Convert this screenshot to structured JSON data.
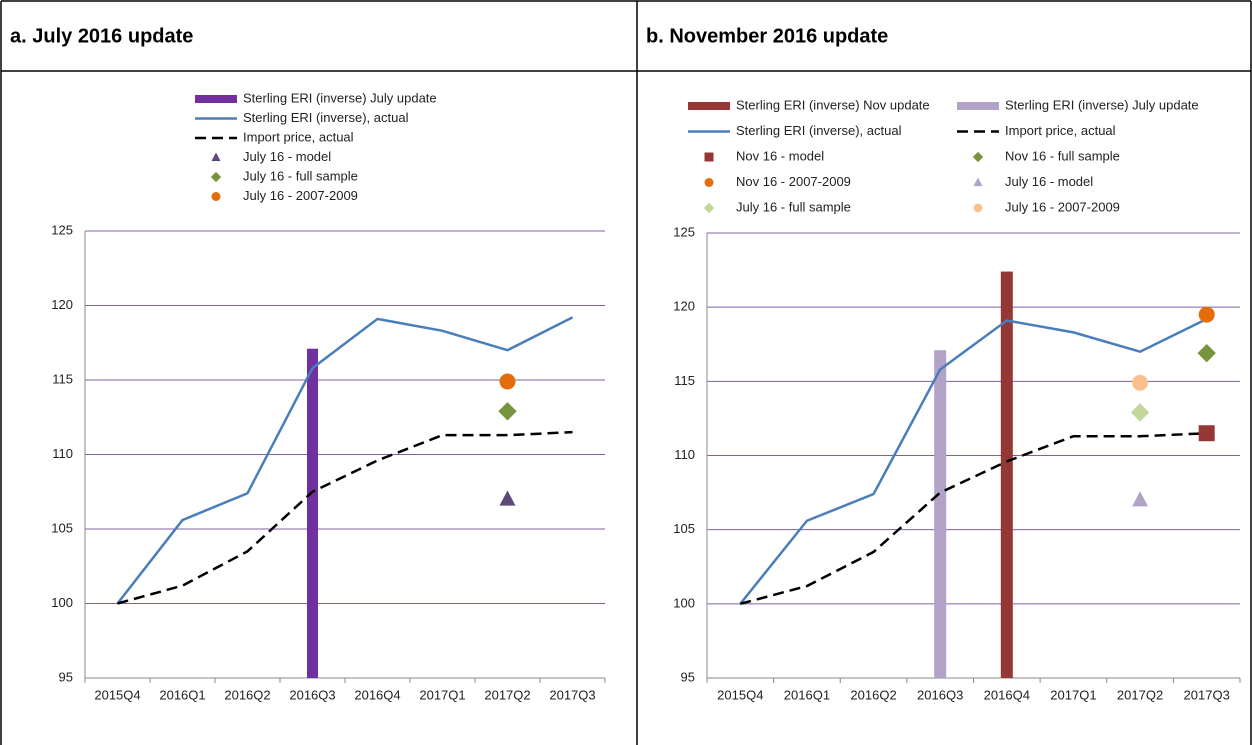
{
  "chart_data": [
    {
      "type": "combo",
      "title": "a. July 2016 update",
      "legend_columns": 1,
      "categories": [
        "2015Q4",
        "2016Q1",
        "2016Q2",
        "2016Q3",
        "2016Q4",
        "2017Q1",
        "2017Q2",
        "2017Q3"
      ],
      "ylim": [
        95,
        125
      ],
      "yticks": [
        95,
        100,
        105,
        110,
        115,
        120,
        125
      ],
      "grid": true,
      "series": [
        {
          "name": "Sterling ERI (inverse) July update",
          "kind": "bar",
          "color": "#7030a0",
          "values": [
            null,
            null,
            null,
            117.1,
            null,
            null,
            null,
            null
          ]
        },
        {
          "name": "Sterling ERI (inverse), actual",
          "kind": "line",
          "color": "#4a7ebb",
          "values": [
            100,
            105.6,
            107.4,
            115.8,
            119.1,
            118.3,
            117.0,
            119.2
          ]
        },
        {
          "name": "Import price, actual",
          "kind": "line",
          "dash": true,
          "color": "#000000",
          "values": [
            100,
            101.2,
            103.5,
            107.5,
            109.6,
            111.3,
            111.3,
            111.5
          ]
        },
        {
          "name": "July 16 - model",
          "kind": "scatter",
          "marker": "triangle",
          "color": "#5f497a",
          "values": [
            null,
            null,
            null,
            null,
            null,
            null,
            107.0,
            null
          ]
        },
        {
          "name": "July 16 - full sample",
          "kind": "scatter",
          "marker": "diamond",
          "color": "#77933c",
          "values": [
            null,
            null,
            null,
            null,
            null,
            null,
            112.9,
            null
          ]
        },
        {
          "name": "July 16 - 2007-2009",
          "kind": "scatter",
          "marker": "circle",
          "color": "#e46c0a",
          "values": [
            null,
            null,
            null,
            null,
            null,
            null,
            114.9,
            null
          ]
        }
      ]
    },
    {
      "type": "combo",
      "title": "b. November 2016 update",
      "legend_columns": 2,
      "categories": [
        "2015Q4",
        "2016Q1",
        "2016Q2",
        "2016Q3",
        "2016Q4",
        "2017Q1",
        "2017Q2",
        "2017Q3"
      ],
      "ylim": [
        95,
        125
      ],
      "yticks": [
        95,
        100,
        105,
        110,
        115,
        120,
        125
      ],
      "grid": true,
      "series": [
        {
          "name": "Sterling ERI (inverse) Nov update",
          "kind": "bar",
          "color": "#953735",
          "values": [
            null,
            null,
            null,
            null,
            122.4,
            null,
            null,
            null
          ]
        },
        {
          "name": "Sterling ERI (inverse) July update",
          "kind": "bar",
          "color": "#b3a2c7",
          "values": [
            null,
            null,
            null,
            117.1,
            null,
            null,
            null,
            null
          ]
        },
        {
          "name": "Sterling ERI (inverse), actual",
          "kind": "line",
          "color": "#4a7ebb",
          "values": [
            100,
            105.6,
            107.4,
            115.8,
            119.1,
            118.3,
            117.0,
            119.2
          ]
        },
        {
          "name": "Import price, actual",
          "kind": "line",
          "dash": true,
          "color": "#000000",
          "values": [
            100,
            101.2,
            103.5,
            107.5,
            109.6,
            111.3,
            111.3,
            111.5
          ]
        },
        {
          "name": "Nov 16 - model",
          "kind": "scatter",
          "marker": "square",
          "color": "#953735",
          "values": [
            null,
            null,
            null,
            null,
            null,
            null,
            null,
            111.5
          ]
        },
        {
          "name": "Nov 16 - full sample",
          "kind": "scatter",
          "marker": "diamond",
          "color": "#77933c",
          "values": [
            null,
            null,
            null,
            null,
            null,
            null,
            null,
            116.9
          ]
        },
        {
          "name": "Nov 16 - 2007-2009",
          "kind": "scatter",
          "marker": "circle",
          "color": "#e46c0a",
          "values": [
            null,
            null,
            null,
            null,
            null,
            null,
            null,
            119.5
          ]
        },
        {
          "name": "July 16 - model",
          "kind": "scatter",
          "marker": "triangle",
          "color": "#b3a2c7",
          "values": [
            null,
            null,
            null,
            null,
            null,
            null,
            107.0,
            null
          ]
        },
        {
          "name": "July 16 - full sample",
          "kind": "scatter",
          "marker": "diamond",
          "color": "#c3d69b",
          "values": [
            null,
            null,
            null,
            null,
            null,
            null,
            112.9,
            null
          ]
        },
        {
          "name": "July 16 - 2007-2009",
          "kind": "scatter",
          "marker": "circle",
          "color": "#fac090",
          "values": [
            null,
            null,
            null,
            null,
            null,
            null,
            114.9,
            null
          ]
        }
      ]
    }
  ]
}
